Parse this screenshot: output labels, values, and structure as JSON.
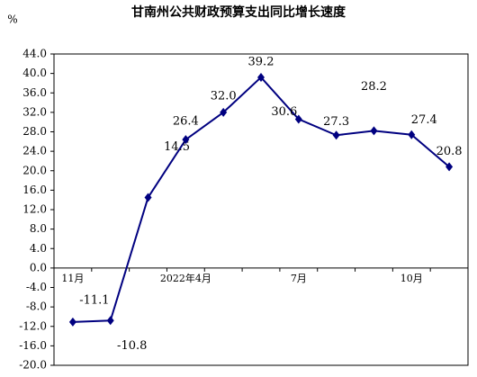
{
  "chart_data": {
    "type": "line",
    "title": "甘南州公共财政预算支出同比增长速度",
    "y_label": "%",
    "categories": [
      "11月",
      null,
      null,
      "2022年4月",
      null,
      null,
      "7月",
      null,
      null,
      "10月",
      null
    ],
    "series": [
      {
        "color": "#000080",
        "values": [
          -11.1,
          -10.8,
          14.5,
          26.4,
          32.0,
          39.2,
          30.6,
          27.3,
          28.2,
          27.4,
          20.8
        ],
        "value_labels": [
          "-11.1",
          "-10.8",
          "14.5",
          "26.4",
          "32.0",
          "39.2",
          "30.6",
          "27.3",
          "28.2",
          "27.4",
          "20.8"
        ]
      }
    ],
    "ylim": [
      -20,
      44
    ],
    "yticks": [
      {
        "value": -20,
        "label": "-20.0"
      },
      {
        "value": -16,
        "label": "-16.0"
      },
      {
        "value": -12,
        "label": "-12.0"
      },
      {
        "value": -8,
        "label": "-8.0"
      },
      {
        "value": -4,
        "label": "-4.0"
      },
      {
        "value": 0,
        "label": "0.0"
      },
      {
        "value": 4,
        "label": "4.0"
      },
      {
        "value": 8,
        "label": "8.0"
      },
      {
        "value": 12,
        "label": "12.0"
      },
      {
        "value": 16,
        "label": "16.0"
      },
      {
        "value": 20,
        "label": "20.0"
      },
      {
        "value": 24,
        "label": "24.0"
      },
      {
        "value": 28,
        "label": "28.0"
      },
      {
        "value": 32,
        "label": "32.0"
      },
      {
        "value": 36,
        "label": "36.0"
      },
      {
        "value": 40,
        "label": "40.0"
      },
      {
        "value": 44,
        "label": "44.0"
      }
    ],
    "grid": false
  }
}
